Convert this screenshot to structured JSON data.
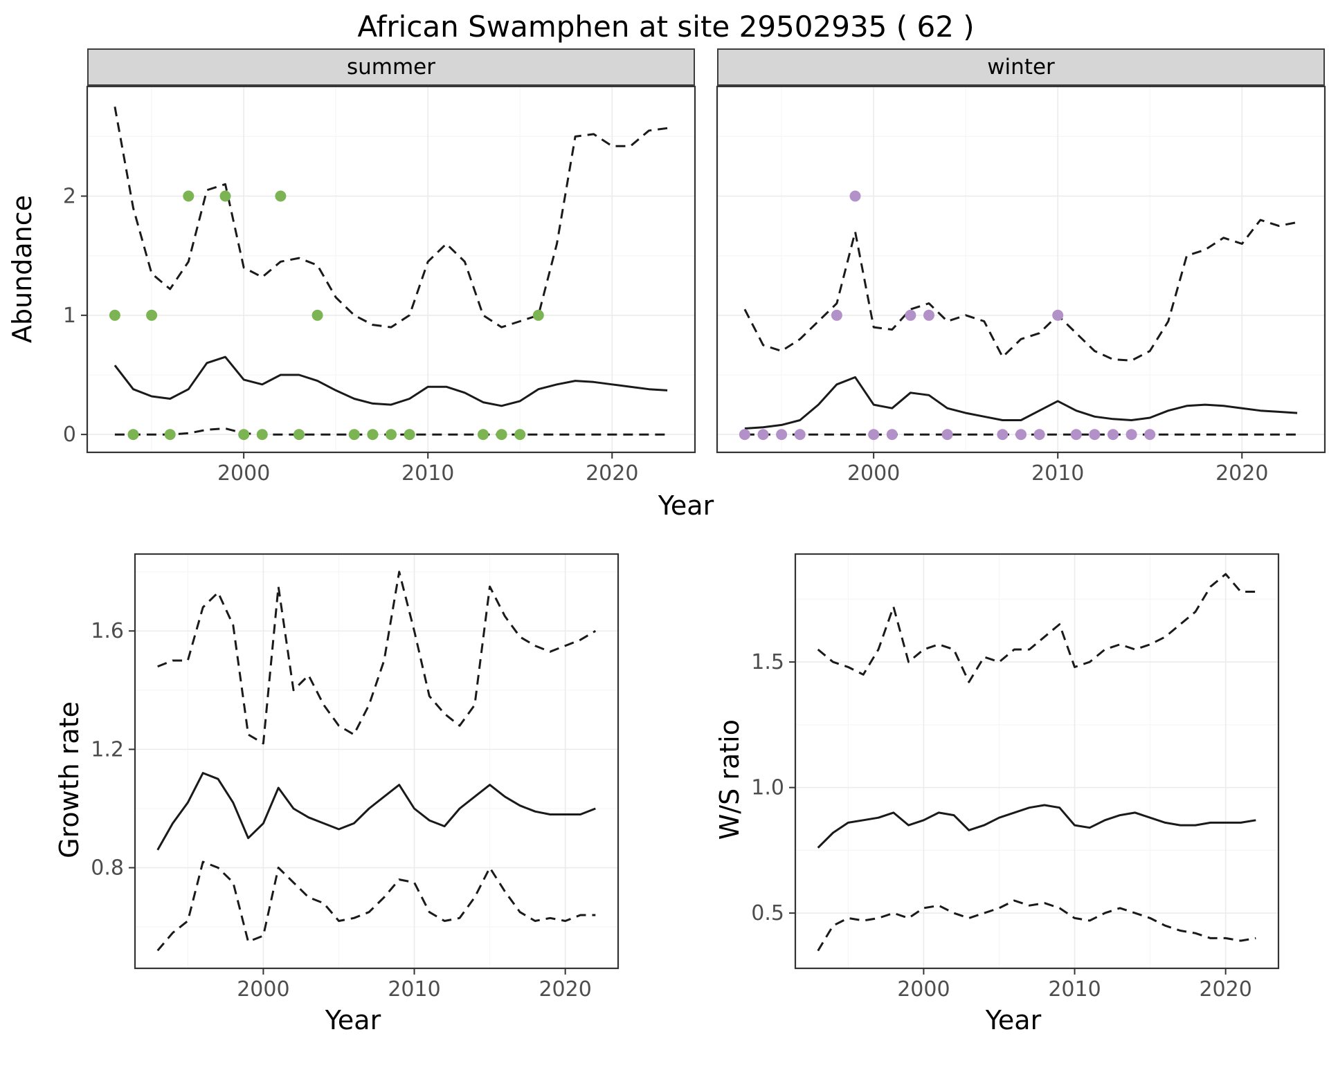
{
  "title": "African Swamphen at site 29502935 ( 62 )",
  "labels": {
    "abundance_ylabel": "Abundance",
    "year_xlabel": "Year"
  },
  "colors": {
    "line": "#1a1a1a",
    "panel_border": "#333333",
    "strip_bg": "#d6d6d6",
    "grid_major": "#ebebeb",
    "grid_minor": "#f6f6f6",
    "tick_label": "#4d4d4d",
    "summer_points": "#7cb454",
    "winter_points": "#b291c8"
  },
  "chart_data": [
    {
      "type": "line",
      "id": "summer_abundance",
      "facet_label": "summer",
      "xlabel": "Year",
      "ylabel": "Abundance",
      "xlim": [
        1991.5,
        2024.5
      ],
      "ylim": [
        -0.15,
        2.92
      ],
      "xticks": [
        2000,
        2010,
        2020
      ],
      "xtick_labels": [
        "2000",
        "2010",
        "2020"
      ],
      "yticks": [
        0,
        1,
        2
      ],
      "ytick_labels": [
        "0",
        "1",
        "2"
      ],
      "x": [
        1993,
        1994,
        1995,
        1996,
        1997,
        1998,
        1999,
        2000,
        2001,
        2002,
        2003,
        2004,
        2005,
        2006,
        2007,
        2008,
        2009,
        2010,
        2011,
        2012,
        2013,
        2014,
        2015,
        2016,
        2017,
        2018,
        2019,
        2020,
        2021,
        2022,
        2023
      ],
      "series": [
        {
          "name": "estimate",
          "style": "solid",
          "values": [
            0.58,
            0.38,
            0.32,
            0.3,
            0.38,
            0.6,
            0.65,
            0.46,
            0.42,
            0.5,
            0.5,
            0.45,
            0.37,
            0.3,
            0.26,
            0.25,
            0.3,
            0.4,
            0.4,
            0.35,
            0.27,
            0.24,
            0.28,
            0.38,
            0.42,
            0.45,
            0.44,
            0.42,
            0.4,
            0.38,
            0.37
          ]
        },
        {
          "name": "upper_ci",
          "style": "dashed",
          "values": [
            2.75,
            1.9,
            1.35,
            1.22,
            1.45,
            2.05,
            2.1,
            1.4,
            1.32,
            1.45,
            1.48,
            1.42,
            1.15,
            1.0,
            0.92,
            0.9,
            1.0,
            1.45,
            1.6,
            1.45,
            1.0,
            0.9,
            0.95,
            1.0,
            1.6,
            2.5,
            2.52,
            2.42,
            2.42,
            2.55,
            2.57
          ]
        },
        {
          "name": "lower_ci",
          "style": "dashed",
          "values": [
            0,
            0,
            0,
            0,
            0.01,
            0.04,
            0.05,
            0.01,
            0,
            0,
            0,
            0,
            0,
            0,
            0,
            0,
            0,
            0,
            0,
            0,
            0,
            0,
            0,
            0,
            0,
            0,
            0,
            0,
            0,
            0,
            0
          ]
        }
      ],
      "points": {
        "name": "observed_counts",
        "color": "#7cb454",
        "x": [
          1993,
          1994,
          1995,
          1996,
          1997,
          1999,
          2000,
          2001,
          2002,
          2003,
          2004,
          2006,
          2007,
          2008,
          2009,
          2013,
          2014,
          2015,
          2016
        ],
        "y": [
          1,
          0,
          1,
          0,
          2,
          2,
          0,
          0,
          2,
          0,
          1,
          0,
          0,
          0,
          0,
          0,
          0,
          0,
          1
        ]
      }
    },
    {
      "type": "line",
      "id": "winter_abundance",
      "facet_label": "winter",
      "xlabel": "Year",
      "ylabel": "Abundance",
      "xlim": [
        1991.5,
        2024.5
      ],
      "ylim": [
        -0.15,
        2.92
      ],
      "xticks": [
        2000,
        2010,
        2020
      ],
      "xtick_labels": [
        "2000",
        "2010",
        "2020"
      ],
      "yticks": [
        0,
        1,
        2
      ],
      "ytick_labels": [
        "0",
        "1",
        "2"
      ],
      "x": [
        1993,
        1994,
        1995,
        1996,
        1997,
        1998,
        1999,
        2000,
        2001,
        2002,
        2003,
        2004,
        2005,
        2006,
        2007,
        2008,
        2009,
        2010,
        2011,
        2012,
        2013,
        2014,
        2015,
        2016,
        2017,
        2018,
        2019,
        2020,
        2021,
        2022,
        2023
      ],
      "series": [
        {
          "name": "estimate",
          "style": "solid",
          "values": [
            0.05,
            0.06,
            0.08,
            0.12,
            0.25,
            0.42,
            0.48,
            0.25,
            0.22,
            0.35,
            0.33,
            0.22,
            0.18,
            0.15,
            0.12,
            0.12,
            0.2,
            0.28,
            0.2,
            0.15,
            0.13,
            0.12,
            0.14,
            0.2,
            0.24,
            0.25,
            0.24,
            0.22,
            0.2,
            0.19,
            0.18
          ]
        },
        {
          "name": "upper_ci",
          "style": "dashed",
          "values": [
            1.05,
            0.75,
            0.7,
            0.8,
            0.95,
            1.1,
            1.7,
            0.9,
            0.88,
            1.05,
            1.1,
            0.95,
            1.0,
            0.95,
            0.65,
            0.8,
            0.85,
            1.0,
            0.85,
            0.7,
            0.63,
            0.62,
            0.7,
            0.95,
            1.5,
            1.55,
            1.65,
            1.6,
            1.8,
            1.75,
            1.78
          ]
        },
        {
          "name": "lower_ci",
          "style": "dashed",
          "values": [
            0,
            0,
            0,
            0,
            0,
            0,
            0,
            0,
            0,
            0,
            0,
            0,
            0,
            0,
            0,
            0,
            0,
            0,
            0,
            0,
            0,
            0,
            0,
            0,
            0,
            0,
            0,
            0,
            0,
            0,
            0
          ]
        }
      ],
      "points": {
        "name": "observed_counts",
        "color": "#b291c8",
        "x": [
          1993,
          1994,
          1995,
          1996,
          1998,
          1999,
          2000,
          2001,
          2002,
          2003,
          2004,
          2007,
          2008,
          2009,
          2010,
          2011,
          2012,
          2013,
          2014,
          2015
        ],
        "y": [
          0,
          0,
          0,
          0,
          1,
          2,
          0,
          0,
          1,
          1,
          0,
          0,
          0,
          0,
          1,
          0,
          0,
          0,
          0,
          0
        ]
      }
    },
    {
      "type": "line",
      "id": "growth_rate",
      "xlabel": "Year",
      "ylabel": "Growth rate",
      "xlim": [
        1991.5,
        2023.5
      ],
      "ylim": [
        0.46,
        1.86
      ],
      "xticks": [
        2000,
        2010,
        2020
      ],
      "xtick_labels": [
        "2000",
        "2010",
        "2020"
      ],
      "yticks": [
        0.8,
        1.2,
        1.6
      ],
      "ytick_labels": [
        "0.8",
        "1.2",
        "1.6"
      ],
      "x": [
        1993,
        1994,
        1995,
        1996,
        1997,
        1998,
        1999,
        2000,
        2001,
        2002,
        2003,
        2004,
        2005,
        2006,
        2007,
        2008,
        2009,
        2010,
        2011,
        2012,
        2013,
        2014,
        2015,
        2016,
        2017,
        2018,
        2019,
        2020,
        2021,
        2022
      ],
      "series": [
        {
          "name": "estimate",
          "style": "solid",
          "values": [
            0.86,
            0.95,
            1.02,
            1.12,
            1.1,
            1.02,
            0.9,
            0.95,
            1.07,
            1.0,
            0.97,
            0.95,
            0.93,
            0.95,
            1.0,
            1.04,
            1.08,
            1.0,
            0.96,
            0.94,
            1.0,
            1.04,
            1.08,
            1.04,
            1.01,
            0.99,
            0.98,
            0.98,
            0.98,
            1.0
          ]
        },
        {
          "name": "upper_ci",
          "style": "dashed",
          "values": [
            1.48,
            1.5,
            1.5,
            1.68,
            1.73,
            1.62,
            1.25,
            1.22,
            1.75,
            1.4,
            1.45,
            1.35,
            1.28,
            1.25,
            1.35,
            1.5,
            1.8,
            1.6,
            1.38,
            1.32,
            1.28,
            1.35,
            1.75,
            1.65,
            1.58,
            1.55,
            1.53,
            1.55,
            1.57,
            1.6
          ]
        },
        {
          "name": "lower_ci",
          "style": "dashed",
          "values": [
            0.52,
            0.58,
            0.62,
            0.82,
            0.8,
            0.75,
            0.55,
            0.57,
            0.8,
            0.75,
            0.7,
            0.68,
            0.62,
            0.63,
            0.65,
            0.7,
            0.76,
            0.75,
            0.65,
            0.62,
            0.63,
            0.7,
            0.8,
            0.72,
            0.65,
            0.62,
            0.63,
            0.62,
            0.64,
            0.64
          ]
        }
      ]
    },
    {
      "type": "line",
      "id": "ws_ratio",
      "xlabel": "Year",
      "ylabel": "W/S ratio",
      "xlim": [
        1991.5,
        2023.5
      ],
      "ylim": [
        0.28,
        1.93
      ],
      "xticks": [
        2000,
        2010,
        2020
      ],
      "xtick_labels": [
        "2000",
        "2010",
        "2020"
      ],
      "yticks": [
        0.5,
        1.0,
        1.5
      ],
      "ytick_labels": [
        "0.5",
        "1.0",
        "1.5"
      ],
      "x": [
        1993,
        1994,
        1995,
        1996,
        1997,
        1998,
        1999,
        2000,
        2001,
        2002,
        2003,
        2004,
        2005,
        2006,
        2007,
        2008,
        2009,
        2010,
        2011,
        2012,
        2013,
        2014,
        2015,
        2016,
        2017,
        2018,
        2019,
        2020,
        2021,
        2022
      ],
      "series": [
        {
          "name": "estimate",
          "style": "solid",
          "values": [
            0.76,
            0.82,
            0.86,
            0.87,
            0.88,
            0.9,
            0.85,
            0.87,
            0.9,
            0.89,
            0.83,
            0.85,
            0.88,
            0.9,
            0.92,
            0.93,
            0.92,
            0.85,
            0.84,
            0.87,
            0.89,
            0.9,
            0.88,
            0.86,
            0.85,
            0.85,
            0.86,
            0.86,
            0.86,
            0.87
          ]
        },
        {
          "name": "upper_ci",
          "style": "dashed",
          "values": [
            1.55,
            1.5,
            1.48,
            1.45,
            1.55,
            1.72,
            1.5,
            1.55,
            1.57,
            1.55,
            1.42,
            1.52,
            1.5,
            1.55,
            1.55,
            1.6,
            1.65,
            1.48,
            1.5,
            1.55,
            1.57,
            1.55,
            1.57,
            1.6,
            1.65,
            1.7,
            1.8,
            1.85,
            1.78,
            1.78
          ]
        },
        {
          "name": "lower_ci",
          "style": "dashed",
          "values": [
            0.35,
            0.45,
            0.48,
            0.47,
            0.48,
            0.5,
            0.48,
            0.52,
            0.53,
            0.5,
            0.48,
            0.5,
            0.52,
            0.55,
            0.53,
            0.54,
            0.52,
            0.48,
            0.47,
            0.5,
            0.52,
            0.5,
            0.48,
            0.45,
            0.43,
            0.42,
            0.4,
            0.4,
            0.39,
            0.4
          ]
        }
      ]
    }
  ]
}
